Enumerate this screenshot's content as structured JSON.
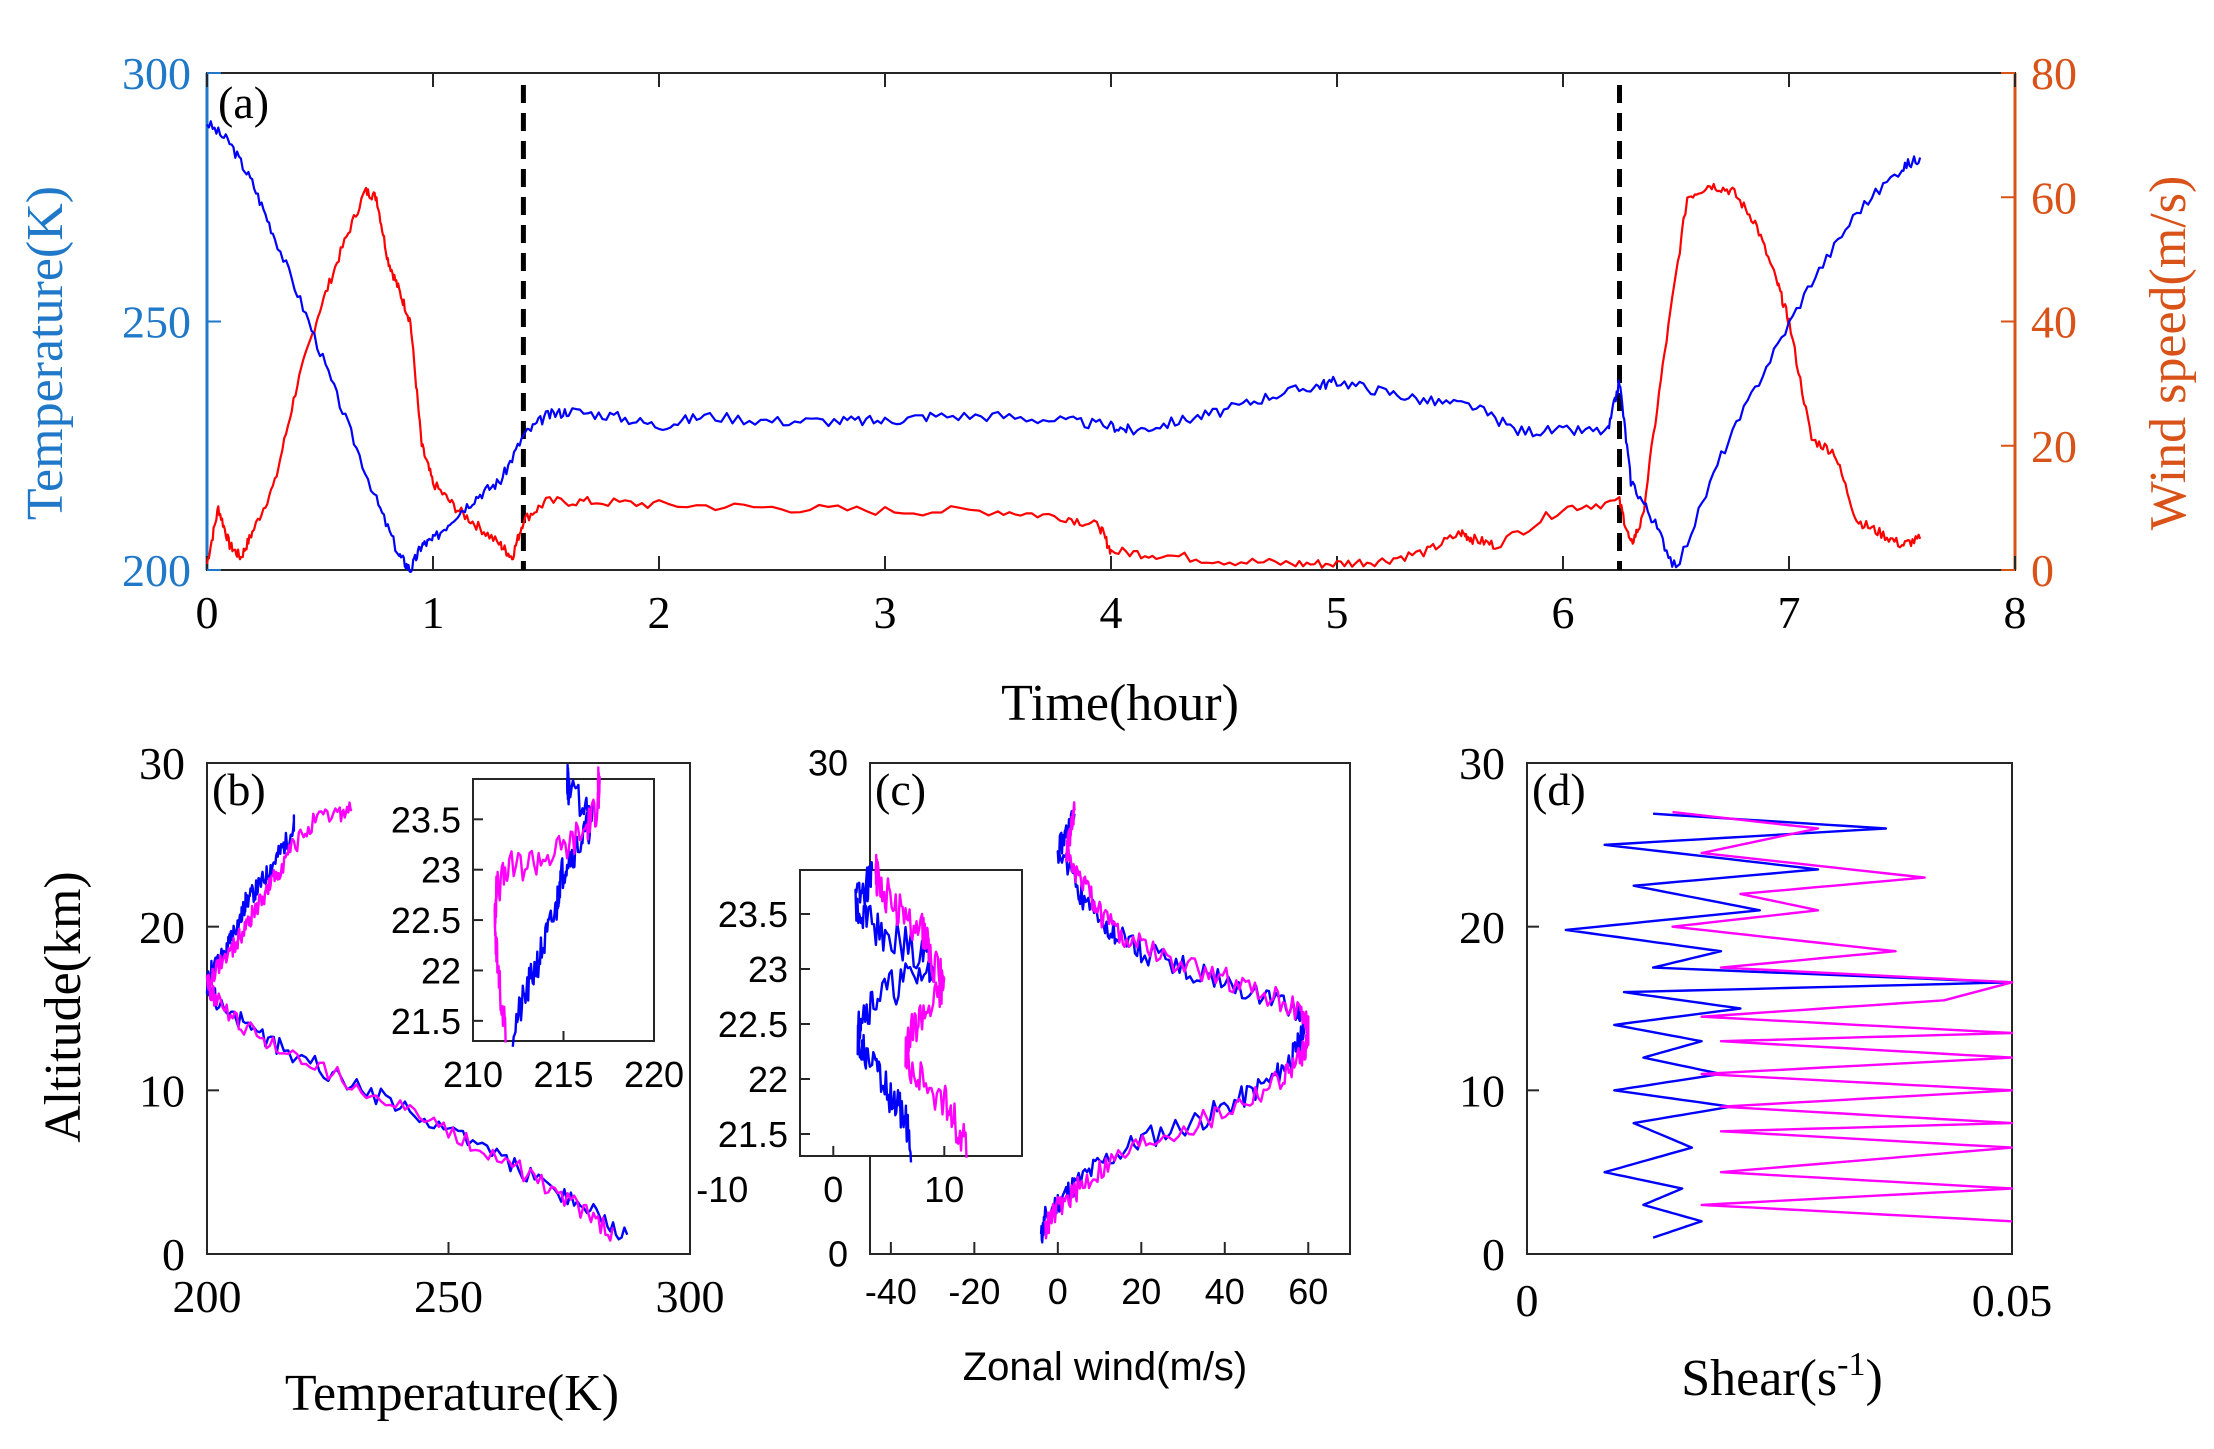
{
  "colors": {
    "temperature_axis": "#1f78c8",
    "wind_axis": "#d95319",
    "blue_series": "#0000ff",
    "red_series": "#ff0000",
    "magenta_series": "#ff00ff",
    "marker_line": "#000000"
  },
  "chart_data": [
    {
      "id": "a",
      "type": "line",
      "panel_label": "(a)",
      "xlabel": "Time(hour)",
      "ylabel_left": "Temperature(K)",
      "ylabel_right": "Wind speed(m/s)",
      "xlim": [
        0,
        8
      ],
      "ylim_left": [
        200,
        300
      ],
      "ylim_right": [
        0,
        80
      ],
      "xticks": [
        0,
        1,
        2,
        3,
        4,
        5,
        6,
        7,
        8
      ],
      "yticks_left": [
        200,
        250,
        300
      ],
      "yticks_right": [
        0,
        20,
        40,
        60,
        80
      ],
      "vertical_markers": [
        1.4,
        6.25
      ],
      "series": [
        {
          "name": "Temperature",
          "axis": "left",
          "color": "blue",
          "x": [
            0,
            0.1,
            0.2,
            0.3,
            0.45,
            0.6,
            0.75,
            0.85,
            0.9,
            0.95,
            1.0,
            1.1,
            1.2,
            1.3,
            1.4,
            1.5,
            1.6,
            1.8,
            2.0,
            2.2,
            2.5,
            2.8,
            3.0,
            3.2,
            3.5,
            3.8,
            4.0,
            4.1,
            4.3,
            4.5,
            4.7,
            4.9,
            5.0,
            5.2,
            5.4,
            5.6,
            5.8,
            6.0,
            6.2,
            6.25,
            6.3,
            6.4,
            6.5,
            6.7,
            6.9,
            7.1,
            7.3,
            7.5,
            7.58
          ],
          "y": [
            290,
            286,
            278,
            267,
            250,
            232,
            214,
            203,
            200,
            205,
            206,
            211,
            215,
            218,
            227,
            231,
            232,
            231,
            229,
            231,
            230,
            230,
            230,
            231,
            231,
            230,
            229,
            228,
            230,
            232,
            235,
            237,
            238,
            236,
            234,
            233,
            228,
            228,
            228,
            238,
            218,
            210,
            200,
            223,
            241,
            258,
            272,
            281,
            283
          ]
        },
        {
          "name": "Wind speed",
          "axis": "right",
          "color": "red",
          "x": [
            0,
            0.05,
            0.1,
            0.15,
            0.2,
            0.3,
            0.4,
            0.5,
            0.6,
            0.7,
            0.75,
            0.8,
            0.85,
            0.9,
            0.95,
            1.0,
            1.1,
            1.2,
            1.3,
            1.35,
            1.4,
            1.5,
            1.7,
            2.0,
            2.5,
            3.0,
            3.5,
            3.8,
            3.95,
            4.0,
            4.2,
            4.5,
            4.8,
            5.0,
            5.2,
            5.4,
            5.55,
            5.6,
            5.7,
            6.0,
            6.25,
            6.3,
            6.35,
            6.45,
            6.55,
            6.65,
            6.75,
            6.85,
            6.95,
            7.0,
            7.1,
            7.2,
            7.3,
            7.4,
            7.5,
            7.58
          ],
          "y": [
            1,
            10,
            4,
            2,
            6,
            14,
            30,
            42,
            52,
            61,
            60,
            50,
            45,
            40,
            20,
            14,
            10,
            7,
            4,
            2,
            8,
            11,
            11,
            10.5,
            10,
            9.5,
            9.5,
            8.5,
            7,
            3,
            2.5,
            1.5,
            1,
            1,
            1.5,
            3,
            6,
            5,
            4,
            10,
            11,
            4,
            8,
            35,
            60,
            62,
            61,
            56,
            46,
            40,
            21,
            19,
            8,
            6,
            4,
            5
          ]
        }
      ]
    },
    {
      "id": "b",
      "type": "line",
      "panel_label": "(b)",
      "xlabel": "Temperature(K)",
      "ylabel": "Altitude(km)",
      "xlim": [
        200,
        300
      ],
      "ylim": [
        0,
        30
      ],
      "xticks": [
        200,
        250,
        300
      ],
      "yticks": [
        0,
        10,
        20,
        30
      ],
      "series": [
        {
          "name": "blue",
          "color": "blue",
          "x": [
            287,
            280,
            272,
            262,
            250,
            238,
            226,
            215,
            208,
            202,
            200,
            201,
            204,
            205,
            207,
            208,
            210,
            212,
            214,
            216,
            218,
            218
          ],
          "y": [
            1,
            2.5,
            4,
            5.7,
            7.5,
            9.3,
            11,
            12.6,
            14,
            15.5,
            16.5,
            17.5,
            18.5,
            19.5,
            20.5,
            21.5,
            22.2,
            23,
            24,
            25,
            26,
            26.5
          ]
        },
        {
          "name": "magenta",
          "color": "magenta",
          "x": [
            284,
            278,
            270,
            261,
            250,
            238,
            226,
            215,
            207,
            202,
            200,
            202,
            205,
            207,
            209,
            211,
            213,
            215,
            218,
            222,
            227,
            230
          ],
          "y": [
            1.2,
            2.6,
            4.2,
            5.8,
            7.5,
            9.3,
            11,
            12.6,
            14,
            15.5,
            16.5,
            17.5,
            18.5,
            19.5,
            20.5,
            21.5,
            22.5,
            23.5,
            25,
            26.3,
            26.9,
            27.1
          ]
        }
      ],
      "inset": {
        "xlim": [
          210,
          220
        ],
        "ylim": [
          21.3,
          23.9
        ],
        "xticks": [
          210,
          215,
          220
        ],
        "yticks": [
          21.5,
          22,
          22.5,
          23,
          23.5
        ],
        "series": [
          {
            "name": "blue",
            "color": "blue",
            "x": [
              212.2,
              212.8,
              213.4,
              214,
              214.6,
              214.8,
              215.2,
              216,
              216.6,
              216.2,
              215.3,
              215.2
            ],
            "y": [
              21.4,
              21.7,
              22,
              22.3,
              22.6,
              22.9,
              23.1,
              23.3,
              23.5,
              23.65,
              23.8,
              23.9
            ]
          },
          {
            "name": "magenta",
            "color": "magenta",
            "x": [
              211.8,
              211.5,
              211.3,
              211.2,
              211.3,
              212,
              213.5,
              215,
              216.2,
              216.8,
              217,
              216.9
            ],
            "y": [
              21.4,
              21.8,
              22.2,
              22.5,
              22.8,
              23,
              23.1,
              23.2,
              23.4,
              23.6,
              23.75,
              23.9
            ]
          }
        ]
      }
    },
    {
      "id": "c",
      "type": "line",
      "panel_label": "(c)",
      "xlabel": "Zonal wind(m/s)",
      "ylabel": "",
      "xlim": [
        -45,
        70
      ],
      "ylim": [
        0,
        30
      ],
      "xticks": [
        -40,
        -20,
        0,
        20,
        40,
        60
      ],
      "yticks": [
        0,
        30
      ],
      "series": [
        {
          "name": "blue",
          "color": "blue",
          "x": [
            -4,
            -3,
            1,
            4,
            10,
            20,
            34,
            44,
            52,
            56,
            58,
            59,
            57,
            50,
            40,
            30,
            20,
            14,
            10,
            6,
            4,
            0,
            2,
            4
          ],
          "y": [
            1,
            2.2,
            3.5,
            4.2,
            5.5,
            7,
            8.2,
            9.5,
            10.8,
            12,
            13,
            14,
            14.8,
            15.8,
            16.6,
            17.5,
            18.5,
            19.5,
            20.5,
            21.7,
            23,
            24.5,
            25.8,
            26.9
          ]
        },
        {
          "name": "magenta",
          "color": "magenta",
          "x": [
            -3,
            -1,
            3,
            6,
            12,
            22,
            36,
            46,
            54,
            58,
            60,
            60,
            58,
            51,
            42,
            32,
            22,
            16,
            11,
            8,
            5,
            2,
            3,
            4
          ],
          "y": [
            1.5,
            2.5,
            3.5,
            4.3,
            5.5,
            7,
            8.2,
            9.5,
            10.8,
            12,
            13,
            14,
            14.8,
            15.8,
            16.6,
            17.5,
            18.5,
            19.5,
            20.5,
            21.7,
            23,
            24.5,
            25.8,
            27.1
          ]
        }
      ],
      "inset": {
        "xlim": [
          -3,
          17
        ],
        "ylim": [
          21.3,
          23.9
        ],
        "xticks": [
          -10,
          0,
          10
        ],
        "yticks": [
          21.5,
          22,
          22.5,
          23,
          23.5
        ],
        "series": [
          {
            "name": "blue",
            "color": "blue",
            "x": [
              7,
              6.5,
              5.5,
              4.2,
              3,
              2.2,
              2.5,
              4,
              6.5,
              9,
              8,
              5,
              3,
              2,
              3,
              3.5
            ],
            "y": [
              21.4,
              21.6,
              21.8,
              22,
              22.2,
              22.4,
              22.6,
              22.75,
              22.9,
              23,
              23.15,
              23.3,
              23.45,
              23.6,
              23.75,
              23.9
            ]
          },
          {
            "name": "magenta",
            "color": "magenta",
            "x": [
              12,
              11,
              10,
              8,
              6.5,
              7,
              8,
              9.5,
              10,
              9,
              8.5,
              8,
              6.5,
              5,
              4,
              3.8
            ],
            "y": [
              21.4,
              21.6,
              21.8,
              22,
              22.2,
              22.4,
              22.6,
              22.75,
              22.9,
              23.05,
              23.2,
              23.35,
              23.5,
              23.65,
              23.8,
              23.9
            ]
          }
        ]
      }
    },
    {
      "id": "d",
      "type": "line",
      "panel_label": "(d)",
      "xlabel": "Shear(s",
      "xlabel_exponent": "-1",
      "xlabel_close": ")",
      "ylabel": "",
      "xlim": [
        0,
        0.05
      ],
      "ylim": [
        0,
        30
      ],
      "xticks": [
        0,
        0.05
      ],
      "yticks": [
        0,
        10,
        20,
        30
      ],
      "series": [
        {
          "name": "blue",
          "color": "blue",
          "x": [
            0.013,
            0.018,
            0.012,
            0.016,
            0.008,
            0.017,
            0.011,
            0.021,
            0.009,
            0.02,
            0.012,
            0.018,
            0.009,
            0.022,
            0.01,
            0.05,
            0.013,
            0.02,
            0.004,
            0.024,
            0.011,
            0.03,
            0.008,
            0.037,
            0.013
          ],
          "y": [
            1,
            2,
            3,
            4,
            5,
            6.5,
            8,
            9,
            10,
            11,
            12,
            13,
            14,
            15,
            16,
            16.6,
            17.5,
            18.5,
            19.8,
            21,
            22.5,
            23.5,
            25,
            26,
            26.9
          ]
        },
        {
          "name": "magenta",
          "color": "magenta",
          "x": [
            0.05,
            0.018,
            0.05,
            0.02,
            0.05,
            0.02,
            0.05,
            0.02,
            0.05,
            0.018,
            0.05,
            0.02,
            0.05,
            0.018,
            0.043,
            0.05,
            0.02,
            0.038,
            0.015,
            0.03,
            0.022,
            0.041,
            0.018,
            0.03,
            0.015
          ],
          "y": [
            2,
            3,
            4,
            5,
            6.5,
            7.5,
            8,
            9,
            10,
            11,
            12,
            13,
            13.5,
            14.5,
            15.5,
            16.6,
            17.5,
            18.5,
            20,
            21,
            22,
            23,
            24.5,
            26,
            27
          ]
        }
      ]
    }
  ]
}
